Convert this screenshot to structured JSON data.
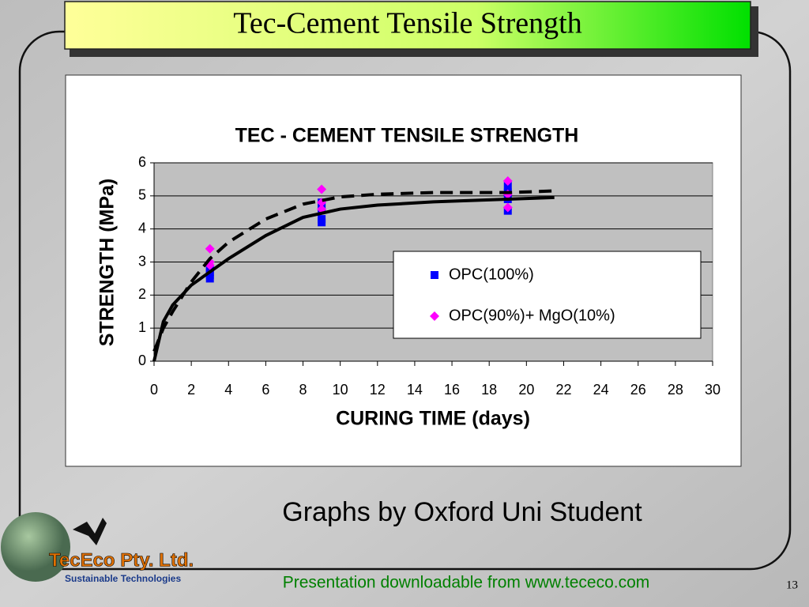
{
  "slide": {
    "title": "Tec-Cement Tensile Strength",
    "caption": "Graphs by Oxford Uni Student",
    "footer": "Presentation downloadable from www.tececo.com",
    "page_number": "13",
    "logo": {
      "name": "TecEco Pty. Ltd.",
      "tagline": "Sustainable Technologies"
    }
  },
  "chart_data": {
    "type": "scatter",
    "title": "TEC - CEMENT TENSILE STRENGTH",
    "x_label": "CURING TIME (days)",
    "y_label": "STRENGTH (MPa)",
    "xlim": [
      0,
      30
    ],
    "xticks": [
      0,
      2,
      4,
      6,
      8,
      10,
      12,
      14,
      16,
      18,
      20,
      22,
      24,
      26,
      28,
      30
    ],
    "ylim": [
      0,
      6
    ],
    "yticks": [
      0,
      1,
      2,
      3,
      4,
      5,
      6
    ],
    "grid": true,
    "legend": "right",
    "series": [
      {
        "name": "OPC(100%)",
        "color": "#0000ff",
        "marker": "square",
        "x": [
          3,
          3,
          3,
          3,
          9,
          9,
          9,
          9,
          19,
          19,
          19,
          19
        ],
        "values": [
          2.5,
          2.6,
          2.7,
          2.8,
          4.2,
          4.3,
          4.6,
          4.8,
          4.55,
          4.9,
          5.1,
          5.3
        ]
      },
      {
        "name": "OPC(90%)+ MgO(10%)",
        "color": "#ff00ff",
        "marker": "diamond",
        "x": [
          3,
          3,
          3,
          9,
          9,
          9,
          19,
          19,
          19
        ],
        "values": [
          3.4,
          3.0,
          2.9,
          5.2,
          4.8,
          4.6,
          5.45,
          5.05,
          4.65
        ]
      }
    ],
    "trendlines": [
      {
        "style": "solid",
        "x": [
          0,
          0.5,
          1,
          2,
          3,
          4,
          6,
          8,
          10,
          12,
          15,
          19,
          21.5
        ],
        "values": [
          0,
          1.2,
          1.7,
          2.3,
          2.7,
          3.1,
          3.8,
          4.35,
          4.6,
          4.72,
          4.82,
          4.9,
          4.95
        ]
      },
      {
        "style": "dashed",
        "x": [
          0,
          0.5,
          1,
          2,
          3,
          4,
          6,
          8,
          10,
          12,
          15,
          19,
          21.5
        ],
        "values": [
          0.3,
          1.0,
          1.5,
          2.4,
          3.1,
          3.6,
          4.3,
          4.75,
          4.97,
          5.05,
          5.1,
          5.1,
          5.15
        ]
      }
    ]
  }
}
